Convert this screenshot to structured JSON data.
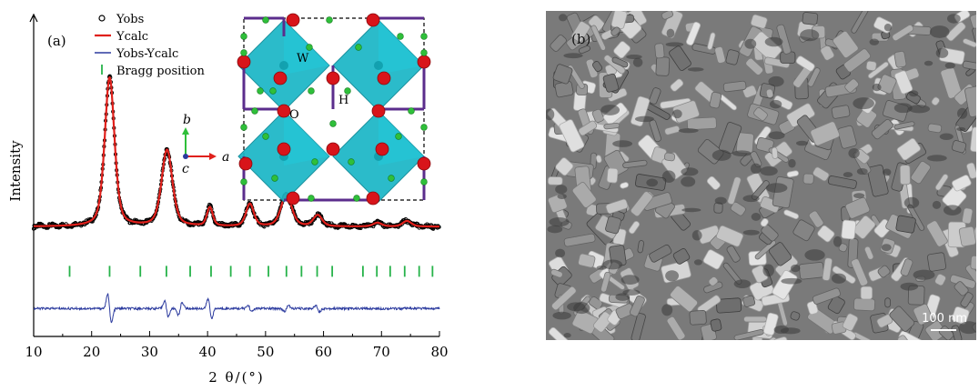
{
  "panel_a_label": "(a)",
  "panel_b_label": "(b)",
  "chart_data": {
    "type": "line",
    "xlabel": "2 θ/(°)",
    "ylabel": "Intensity",
    "xlim": [
      10,
      80
    ],
    "xticks": [
      10,
      20,
      30,
      40,
      50,
      60,
      70,
      80
    ],
    "ylim": [
      -0.55,
      1.18
    ],
    "legend": {
      "placement": "top-left",
      "entries": [
        "Yobs",
        "Ycalc",
        "Yobs-Ycalc",
        "Bragg position"
      ]
    },
    "peaks": [
      {
        "x": 23.1,
        "h": 0.8,
        "w": 1.0
      },
      {
        "x": 33.0,
        "h": 0.41,
        "w": 1.1
      },
      {
        "x": 40.4,
        "h": 0.1,
        "w": 0.6
      },
      {
        "x": 47.3,
        "h": 0.12,
        "w": 0.8
      },
      {
        "x": 53.6,
        "h": 0.17,
        "w": 1.1
      },
      {
        "x": 59.0,
        "h": 0.06,
        "w": 0.9
      },
      {
        "x": 69.3,
        "h": 0.02,
        "w": 0.9
      },
      {
        "x": 74.4,
        "h": 0.03,
        "w": 0.9
      }
    ],
    "baseline": 0.04,
    "bragg_positions": [
      16.2,
      23.1,
      28.4,
      32.9,
      37.0,
      40.6,
      44.0,
      47.3,
      50.5,
      53.6,
      56.2,
      58.9,
      61.5,
      66.8,
      69.2,
      71.5,
      74.0,
      76.5,
      78.8
    ],
    "bragg_offset": -0.2,
    "difference_offset": -0.4,
    "difference_features": [
      {
        "x": 23.1,
        "amp": 0.09
      },
      {
        "x": 32.9,
        "amp": 0.05
      },
      {
        "x": 35.3,
        "amp": -0.04
      },
      {
        "x": 40.4,
        "amp": 0.06
      },
      {
        "x": 47.3,
        "amp": 0.02
      },
      {
        "x": 53.6,
        "amp": -0.02
      },
      {
        "x": 59.0,
        "amp": 0.02
      }
    ]
  },
  "inset": {
    "atom_labels": [
      "W",
      "O",
      "H"
    ],
    "axis_labels": [
      "a",
      "b",
      "c"
    ]
  },
  "sem": {
    "scale_bar_label": "100 nm"
  },
  "colors": {
    "observed": "#000000",
    "calculated": "#e0201b",
    "difference": "#2b3a9e",
    "bragg": "#27b34a",
    "octahedron": "#1ab6c6",
    "oxygen": "#d8141a",
    "hydrogen": "#2fbf3a",
    "bond": "#5b2d8c"
  }
}
